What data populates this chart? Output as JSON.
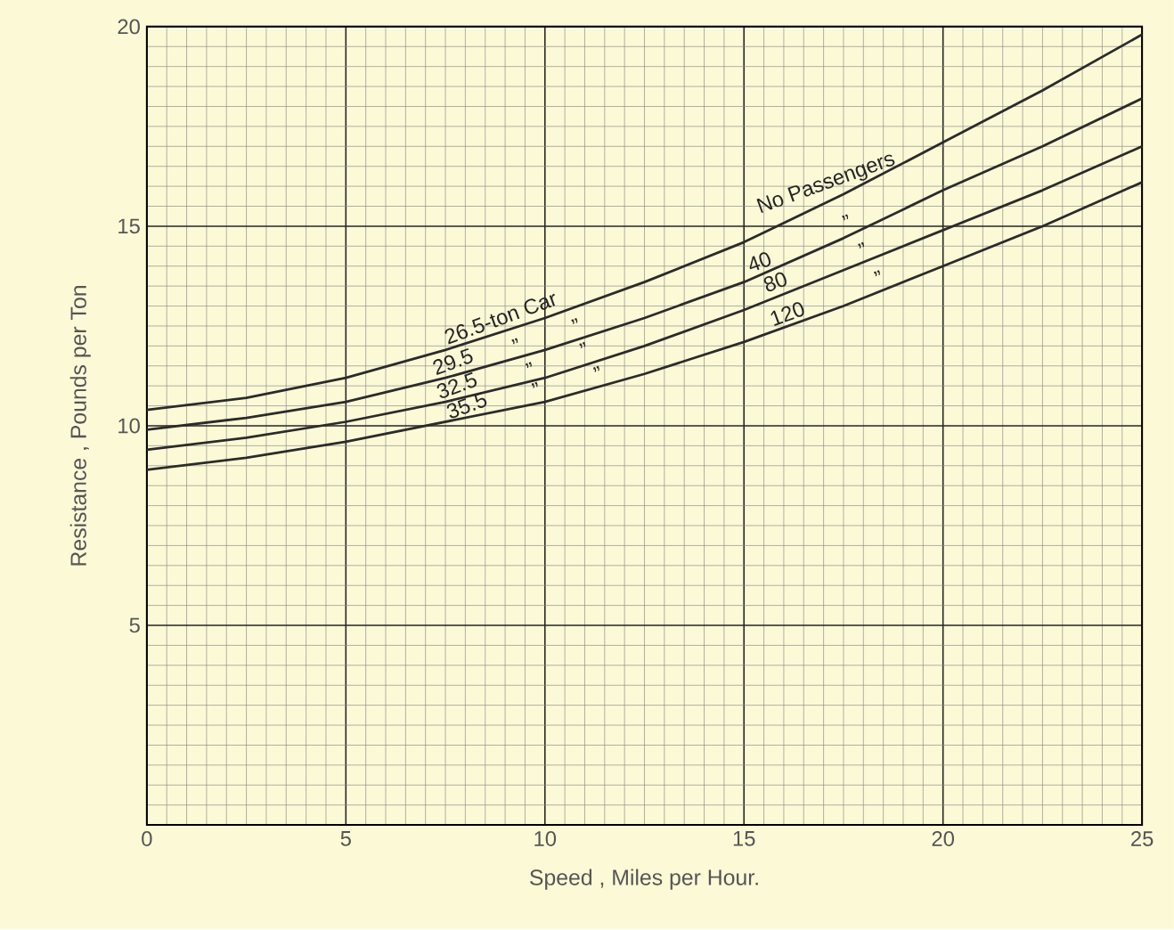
{
  "chart_data": {
    "type": "line",
    "xlabel": "Speed , Miles  per Hour.",
    "ylabel": "Resistance , Pounds per Ton",
    "x": [
      0,
      2.5,
      5,
      7.5,
      10,
      12.5,
      15,
      17.5,
      20,
      22.5,
      25
    ],
    "series": [
      {
        "color": "#2b2b2b",
        "values": [
          10.4,
          10.7,
          11.2,
          11.9,
          12.7,
          13.6,
          14.6,
          15.8,
          17.1,
          18.4,
          19.8
        ]
      },
      {
        "color": "#2b2b2b",
        "values": [
          9.9,
          10.2,
          10.6,
          11.2,
          11.9,
          12.7,
          13.6,
          14.7,
          15.9,
          17.0,
          18.2
        ]
      },
      {
        "color": "#2b2b2b",
        "values": [
          9.4,
          9.7,
          10.1,
          10.6,
          11.2,
          12.0,
          12.9,
          13.9,
          14.9,
          15.9,
          17.0
        ]
      },
      {
        "color": "#2b2b2b",
        "values": [
          8.9,
          9.2,
          9.6,
          10.1,
          10.6,
          11.3,
          12.1,
          13.0,
          14.0,
          15.0,
          16.1
        ]
      }
    ],
    "xlim": [
      0,
      25
    ],
    "ylim": [
      0,
      20
    ],
    "xticks": [
      0,
      5,
      10,
      15,
      20,
      25
    ],
    "yticks": [
      {
        "value": 0,
        "label": null
      },
      5,
      10,
      15,
      20
    ],
    "grid": true,
    "legend": false,
    "marker": "none",
    "line_style": "solid",
    "annotations": [
      {
        "text": "26.5-ton Car",
        "x": 9.0,
        "y": 12.4
      },
      {
        "text": "29.5",
        "x": 7.8,
        "y": 11.3
      },
      {
        "text": "32.5",
        "x": 7.9,
        "y": 10.7
      },
      {
        "text": "35.5",
        "x": 8.15,
        "y": 10.2
      },
      {
        "text": "No Passengers",
        "x": 17.2,
        "y": 15.7
      },
      {
        "text": "40",
        "x": 15.5,
        "y": 13.8
      },
      {
        "text": "80",
        "x": 15.9,
        "y": 13.3
      },
      {
        "text": "120",
        "x": 16.2,
        "y": 12.5
      },
      {
        "text": "”",
        "x": 9.4,
        "y": 11.7
      },
      {
        "text": "”",
        "x": 10.9,
        "y": 12.2
      },
      {
        "text": "”",
        "x": 9.75,
        "y": 11.1
      },
      {
        "text": "”",
        "x": 11.1,
        "y": 11.6
      },
      {
        "text": "”",
        "x": 9.9,
        "y": 10.6
      },
      {
        "text": "”",
        "x": 11.45,
        "y": 11.0
      },
      {
        "text": "”",
        "x": 17.7,
        "y": 14.8
      },
      {
        "text": "”",
        "x": 18.1,
        "y": 14.1
      },
      {
        "text": "”",
        "x": 18.5,
        "y": 13.4
      }
    ]
  }
}
